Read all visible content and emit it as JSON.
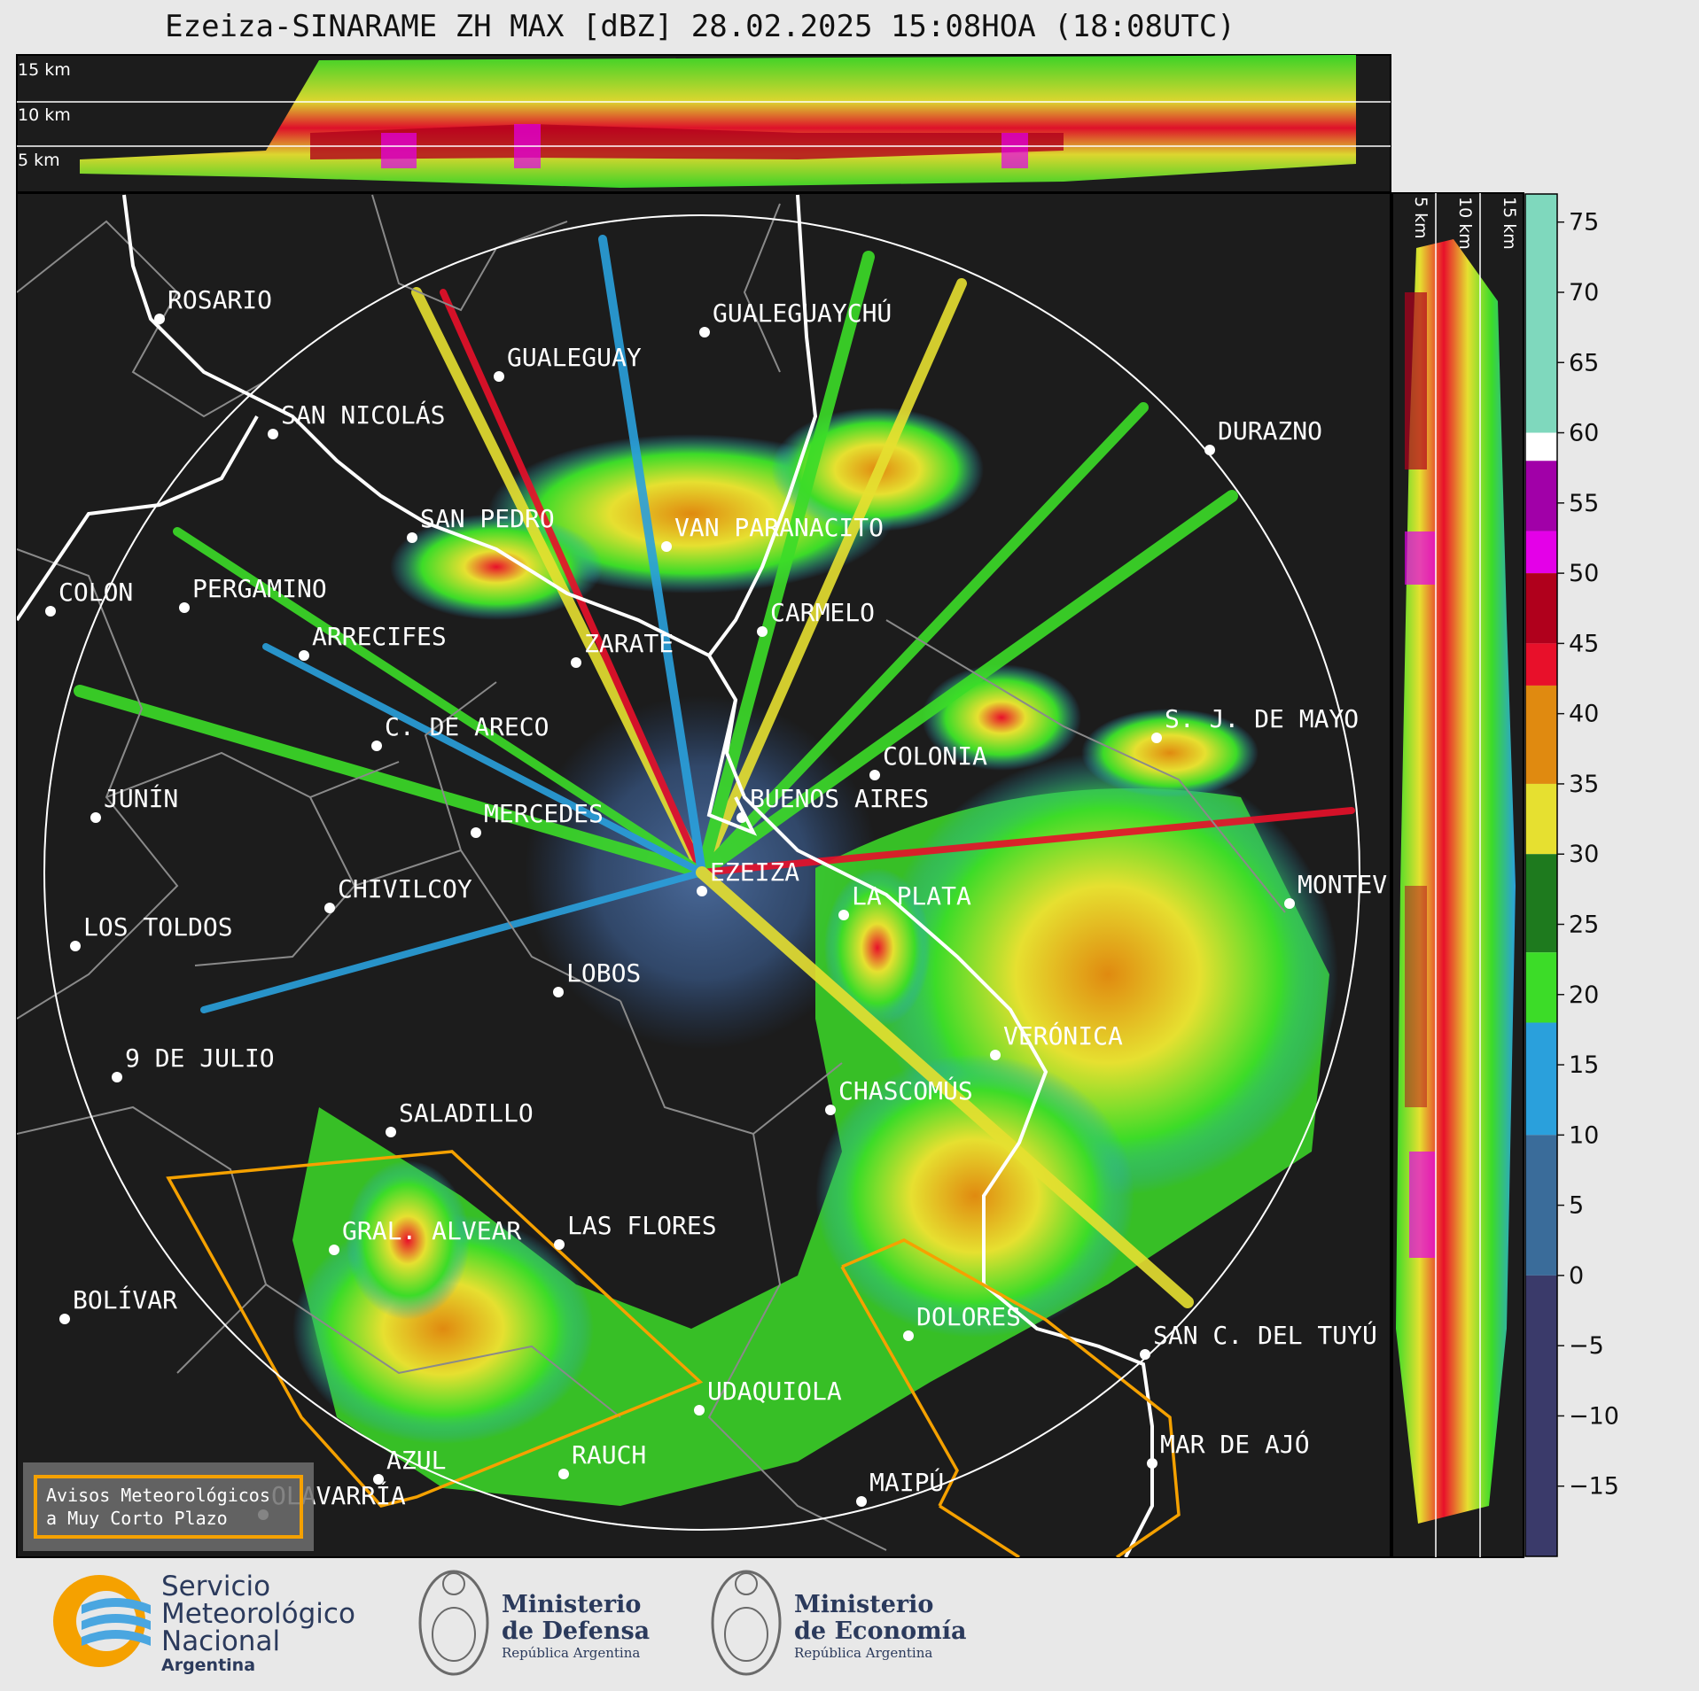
{
  "title": "Ezeiza-SINARAME ZH MAX [dBZ] 28.02.2025 15:08HOA (18:08UTC)",
  "top_panel": {
    "height_labels": [
      "15 km",
      "10 km",
      "5 km"
    ]
  },
  "side_panel": {
    "height_labels": [
      "5 km",
      "10 km",
      "15 km"
    ]
  },
  "colorbar": {
    "ticks": [
      "75",
      "70",
      "65",
      "60",
      "55",
      "50",
      "45",
      "40",
      "35",
      "30",
      "25",
      "20",
      "15",
      "10",
      "5",
      "0",
      "−5",
      "−10",
      "−15"
    ],
    "colors": {
      "very_high": "#7fd8bd",
      "white_band": "#ffffff",
      "purple": "#a100a8",
      "magenta": "#e400e8",
      "dark_red": "#b0001c",
      "red": "#e8102a",
      "orange": "#e08a10",
      "yellow": "#e6e030",
      "dark_green": "#1e7a1e",
      "green": "#3cdc28",
      "blue": "#2aa0dc",
      "steel": "#3a6c9a",
      "navy": "#3a3a6a"
    }
  },
  "map": {
    "cities": [
      {
        "name": "ROSARIO"
      },
      {
        "name": "GUALEGUAYCHÚ"
      },
      {
        "name": "GUALEGUAY"
      },
      {
        "name": "SAN NICOLÁS"
      },
      {
        "name": "DURAZNO"
      },
      {
        "name": "SAN PEDRO"
      },
      {
        "name": "VAN PARANACITO"
      },
      {
        "name": "COLON"
      },
      {
        "name": "PERGAMINO"
      },
      {
        "name": "CARMELO"
      },
      {
        "name": "ARRECIFES"
      },
      {
        "name": "ZARATE"
      },
      {
        "name": "S. J. DE MAYO"
      },
      {
        "name": "C. DE ARECO"
      },
      {
        "name": "COLONIA"
      },
      {
        "name": "JUNÍN"
      },
      {
        "name": "MERCEDES"
      },
      {
        "name": "BUENOS AIRES"
      },
      {
        "name": "EZEIZA"
      },
      {
        "name": "MONTEV"
      },
      {
        "name": "CHIVILCOY"
      },
      {
        "name": "LA PLATA"
      },
      {
        "name": "LOS TOLDOS"
      },
      {
        "name": "LOBOS"
      },
      {
        "name": "VERÓNICA"
      },
      {
        "name": "9 DE JULIO"
      },
      {
        "name": "CHASCOMÚS"
      },
      {
        "name": "SALADILLO"
      },
      {
        "name": "GRAL. ALVEAR"
      },
      {
        "name": "LAS FLORES"
      },
      {
        "name": "BOLÍVAR"
      },
      {
        "name": "DOLORES"
      },
      {
        "name": "SAN C. DEL TUYÚ"
      },
      {
        "name": "UDAQUIOLA"
      },
      {
        "name": "MAR DE AJÓ"
      },
      {
        "name": "AZUL"
      },
      {
        "name": "RAUCH"
      },
      {
        "name": "MAIPÚ"
      },
      {
        "name": "OLAVARRÍA"
      }
    ],
    "warning_box": {
      "line1": "Avisos Meteorológicos",
      "line2": "a Muy Corto Plazo"
    },
    "colors": {
      "background": "#1c1c1c",
      "coast": "#ffffff",
      "borders": "#8a8a8a",
      "warning": "#f5a100"
    }
  },
  "footer": {
    "smn": {
      "line1": "Servicio",
      "line2": "Meteorológico",
      "line3": "Nacional",
      "line4": "Argentina"
    },
    "defensa": {
      "line1": "Ministerio",
      "line2": "de Defensa",
      "sub": "República Argentina"
    },
    "economia": {
      "line1": "Ministerio",
      "line2": "de Economía",
      "sub": "República Argentina"
    }
  }
}
